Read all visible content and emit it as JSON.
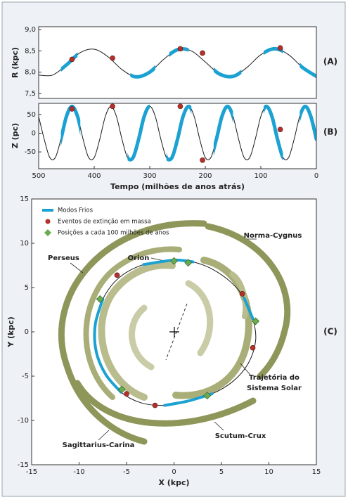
{
  "chart_data": [
    {
      "type": "line",
      "ylabel": "R (kpc)",
      "panel_label": "(A)",
      "x": [
        500,
        475,
        450,
        425,
        400,
        375,
        350,
        325,
        300,
        275,
        250,
        225,
        200,
        175,
        150,
        125,
        100,
        75,
        50,
        25,
        0
      ],
      "series": [
        {
          "color": "#1a1a1a",
          "values": [
            7.93,
            7.93,
            8.17,
            8.46,
            8.54,
            8.36,
            8.06,
            7.89,
            8.0,
            8.3,
            8.53,
            8.5,
            8.24,
            7.96,
            7.9,
            8.11,
            8.41,
            8.55,
            8.41,
            8.11,
            7.9
          ]
        }
      ],
      "events": {
        "color": "#b5302a",
        "x": [
          440,
          367,
          245,
          205,
          65
        ],
        "values": [
          8.3,
          8.33,
          8.55,
          8.45,
          8.57
        ]
      },
      "cold_intervals": [
        [
          460,
          430
        ],
        [
          335,
          290
        ],
        [
          265,
          230
        ],
        [
          185,
          135
        ],
        [
          95,
          60
        ],
        [
          30,
          0
        ]
      ],
      "cold_color": "#1ba1d2",
      "xlim": [
        500,
        0
      ],
      "ylim": [
        7.38,
        9.07
      ],
      "yticks": [
        {
          "value": 7.5,
          "label": "7,5"
        },
        {
          "value": 8.0,
          "label": "8,0"
        },
        {
          "value": 8.5,
          "label": "8,5"
        },
        {
          "value": 9.0,
          "label": "9,0"
        }
      ]
    },
    {
      "type": "line",
      "ylabel": "Z (pc)",
      "panel_label": "(B)",
      "xlabel": "Tempo (milhões de anos atrás)",
      "x": [
        500,
        490,
        480,
        470,
        460,
        450,
        440,
        430,
        420,
        410,
        400,
        390,
        380,
        370,
        360,
        350,
        340,
        330,
        320,
        310,
        300,
        290,
        280,
        270,
        260,
        250,
        240,
        230,
        220,
        210,
        200,
        190,
        180,
        170,
        160,
        150,
        140,
        130,
        120,
        110,
        100,
        90,
        80,
        70,
        60,
        50,
        40,
        30,
        20,
        10,
        0
      ],
      "series": [
        {
          "color": "#1a1a1a",
          "values": [
            45,
            -16,
            -65,
            -65,
            -16,
            45,
            72,
            45,
            -16,
            -65,
            -65,
            -16,
            45,
            72,
            45,
            -16,
            -65,
            -65,
            -16,
            45,
            72,
            45,
            -16,
            -65,
            -65,
            -16,
            45,
            72,
            45,
            -16,
            -65,
            -65,
            -16,
            45,
            72,
            45,
            -16,
            -65,
            -65,
            -16,
            45,
            72,
            45,
            -16,
            -65,
            -65,
            -16,
            45,
            72,
            45,
            -16
          ]
        }
      ],
      "events": {
        "color": "#b5302a",
        "x": [
          440,
          367,
          245,
          205,
          65
        ],
        "values": [
          65,
          72,
          72,
          -72,
          10
        ]
      },
      "cold_intervals": [
        [
          460,
          425
        ],
        [
          340,
          300
        ],
        [
          270,
          225
        ],
        [
          185,
          150
        ],
        [
          95,
          60
        ],
        [
          30,
          0
        ]
      ],
      "cold_color": "#1ba1d2",
      "xlim": [
        500,
        0
      ],
      "ylim": [
        -95,
        80
      ],
      "yticks": [
        -50,
        0,
        50
      ],
      "xticks": [
        500,
        400,
        300,
        200,
        100,
        0
      ]
    },
    {
      "type": "scatter",
      "panel_label": "(C)",
      "xlabel": "X (kpc)",
      "ylabel": "Y (kpc)",
      "xlim": [
        -15,
        15
      ],
      "ylim": [
        -15,
        15
      ],
      "xticks": [
        -15,
        -10,
        -5,
        0,
        5,
        10,
        15
      ],
      "yticks": [
        -15,
        -10,
        -5,
        0,
        5,
        10,
        15
      ],
      "trajectory": {
        "color": "#1a1a1a",
        "x": [
          0,
          2,
          4,
          6,
          7.4,
          8.3,
          8.6,
          7.8,
          6.2,
          4,
          1.5,
          -1,
          -3.5,
          -5.6,
          -7.2,
          -8.2,
          -8.3,
          -7.5,
          -5.8,
          -3.2,
          0
        ],
        "y": [
          8.1,
          7.9,
          7.1,
          5.6,
          3.8,
          1.5,
          -1,
          -3.6,
          -5.6,
          -7,
          -7.8,
          -8.3,
          -8,
          -6.8,
          -4.8,
          -2.2,
          0.8,
          3.7,
          6.1,
          7.6,
          8.1
        ]
      },
      "series": [
        {
          "name": "Modos Frios",
          "color": "#1ba1d2",
          "marker": "line",
          "x": [
            -3.2,
            0,
            2,
            null,
            7.4,
            8.3,
            null,
            -1,
            1.5,
            4,
            null,
            -5.6,
            -7.2,
            -8.2,
            -8.3,
            -7.5
          ],
          "y": [
            7.6,
            8.1,
            7.9,
            null,
            3.8,
            1.5,
            null,
            -8.3,
            -7.8,
            -7,
            null,
            -6.8,
            -4.8,
            -2.2,
            0.8,
            3.7
          ]
        },
        {
          "name": "Eventos de extinção em massa",
          "color": "#b5302a",
          "marker": "circle",
          "x": [
            -6,
            7.2,
            8.3,
            -5,
            -2
          ],
          "y": [
            6.4,
            4.3,
            -1.8,
            -7,
            -8.3
          ]
        },
        {
          "name": "Posições a cada 100 milhões de anos",
          "color": "#6aab4f",
          "marker": "diamond",
          "x": [
            0,
            1.5,
            8.6,
            3.5,
            -5.5,
            -7.8
          ],
          "y": [
            8,
            7.8,
            1.2,
            -7.2,
            -6.5,
            3.7
          ]
        }
      ],
      "annotations": [
        "Perseus",
        "Orion",
        "Norma-Cygnus",
        "Trajetória do",
        "Sistema Solar",
        "Scutum-Crux",
        "Sagittarius-Carina"
      ]
    }
  ]
}
